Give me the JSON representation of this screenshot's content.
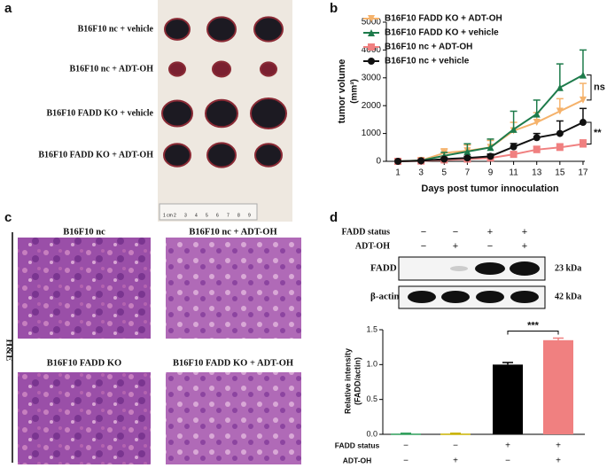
{
  "panels": [
    "a",
    "b",
    "c",
    "d"
  ],
  "photo": {
    "labels": [
      "B16F10 nc + vehicle",
      "B16F10 nc + ADT-OH",
      "B16F10 FADD KO + vehicle",
      "B16F10 FADD KO + ADT-OH"
    ],
    "ruler": [
      "1 cm",
      "2",
      "3",
      "4",
      "5",
      "6",
      "7",
      "8",
      "9"
    ]
  },
  "histology": {
    "titles": [
      "B16F10 nc",
      "B16F10 nc + ADT-OH",
      "B16F10 FADD KO",
      "B16F10 FADD KO + ADT-OH"
    ],
    "stain": "H&E"
  },
  "blot": {
    "rows": [
      {
        "name": "FADD status",
        "signs": [
          "−",
          "−",
          "+",
          "+"
        ]
      },
      {
        "name": "ADT-OH",
        "signs": [
          "−",
          "+",
          "−",
          "+"
        ]
      }
    ],
    "bands": [
      {
        "name": "FADD",
        "size": "23 kDa"
      },
      {
        "name": "β-actin",
        "size": "42 kDa"
      }
    ]
  },
  "chart_data": [
    {
      "type": "line",
      "x": [
        1,
        3,
        5,
        7,
        9,
        11,
        13,
        15,
        17
      ],
      "xlim": [
        0,
        18
      ],
      "xticks": [
        1,
        3,
        5,
        7,
        9,
        11,
        13,
        15,
        17
      ],
      "ylim": [
        0,
        5000
      ],
      "yticks": [
        0,
        1000,
        2000,
        3000,
        4000,
        5000
      ],
      "x_label": "Days post tumor innoculation",
      "y_label": "tumor volume",
      "y_label_unit": "(mm³)",
      "series": [
        {
          "name": "B16F10 FADD KO + ADT-OH",
          "color": "#f5b26b",
          "marker": "triangle-down",
          "values": [
            0,
            30,
            300,
            380,
            500,
            1100,
            1400,
            1800,
            2200
          ],
          "errors": [
            20,
            30,
            150,
            200,
            250,
            300,
            350,
            450,
            600
          ]
        },
        {
          "name": "B16F10 FADD KO + vehicle",
          "color": "#1e7b4b",
          "marker": "triangle-up",
          "values": [
            0,
            30,
            200,
            350,
            500,
            1150,
            1700,
            2650,
            3100
          ],
          "errors": [
            20,
            30,
            120,
            280,
            300,
            650,
            500,
            850,
            900
          ]
        },
        {
          "name": "B16F10 nc + ADT-OH",
          "color": "#f08080",
          "marker": "square",
          "values": [
            0,
            10,
            50,
            80,
            120,
            250,
            420,
            500,
            620
          ],
          "errors": [
            10,
            10,
            30,
            50,
            60,
            100,
            120,
            130,
            150
          ]
        },
        {
          "name": "B16F10 nc + vehicle",
          "color": "#111111",
          "marker": "circle",
          "values": [
            0,
            20,
            80,
            120,
            180,
            520,
            850,
            1000,
            1400
          ],
          "errors": [
            10,
            20,
            40,
            60,
            80,
            120,
            150,
            450,
            500
          ]
        }
      ],
      "annotations": [
        "ns",
        "**"
      ]
    },
    {
      "type": "bar",
      "values": [
        0.01,
        0.01,
        1.0,
        1.35
      ],
      "errors": [
        0.005,
        0.005,
        0.03,
        0.03
      ],
      "colors": [
        "#2e9e5a",
        "#c9b200",
        "#000000",
        "#f08080"
      ],
      "ylim": [
        0,
        1.5
      ],
      "yticks": [
        {
          "value": 0,
          "label": "0.0"
        },
        {
          "value": 0.5,
          "label": "0.5"
        },
        {
          "value": 1,
          "label": "1.0"
        },
        {
          "value": 1.5,
          "label": "1.5"
        }
      ],
      "y_label": "Relative intensity",
      "y_label_unit": "(FADD/actin)",
      "category_rows": [
        {
          "name": "FADD status",
          "labels": [
            "−",
            "−",
            "+",
            "+"
          ]
        },
        {
          "name": "ADT-OH",
          "labels": [
            "−",
            "+",
            "−",
            "+"
          ]
        }
      ],
      "annotation": "***"
    }
  ]
}
